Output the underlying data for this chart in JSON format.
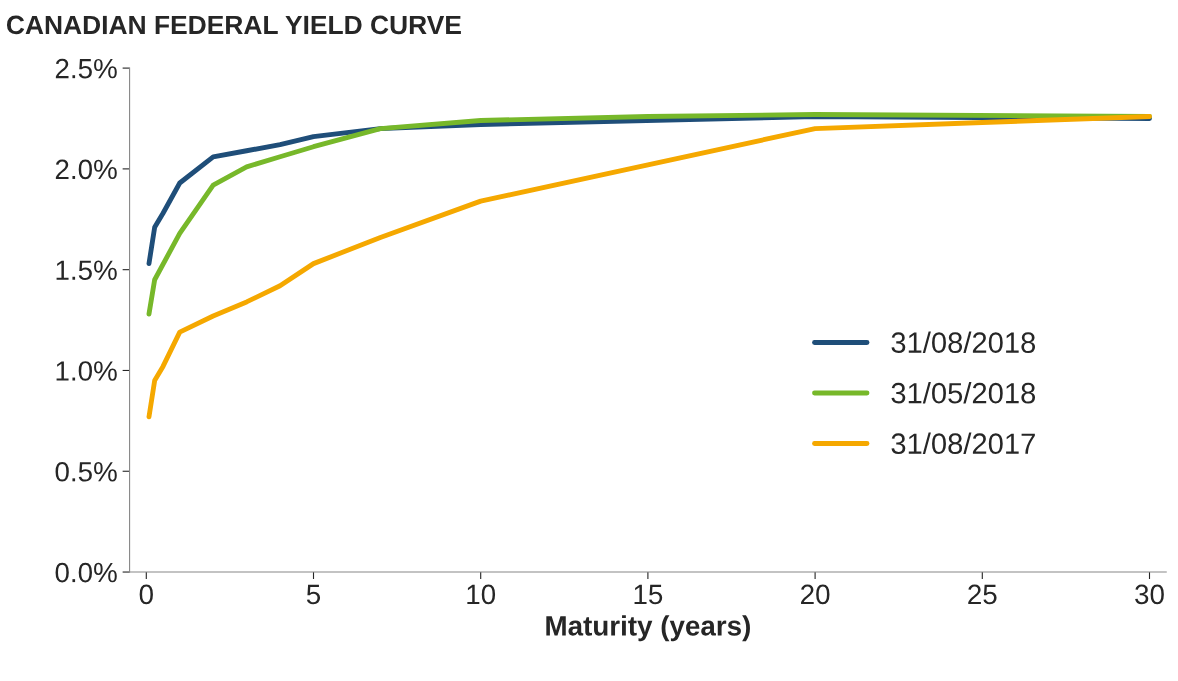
{
  "chart_data": {
    "type": "line",
    "title": "CANADIAN FEDERAL YIELD CURVE",
    "xlabel": "Maturity (years)",
    "series": [
      {
        "name": "31/08/2018",
        "color": "#1f4e79",
        "x": [
          0.08,
          0.25,
          0.5,
          1,
          2,
          3,
          4,
          5,
          7,
          10,
          20,
          30
        ],
        "values": [
          1.53,
          1.71,
          1.78,
          1.93,
          2.06,
          2.09,
          2.12,
          2.16,
          2.2,
          2.22,
          2.26,
          2.25
        ]
      },
      {
        "name": "31/05/2018",
        "color": "#77b82a",
        "x": [
          0.08,
          0.25,
          1,
          2,
          3,
          4,
          5,
          7,
          10,
          15,
          20,
          30
        ],
        "values": [
          1.28,
          1.45,
          1.68,
          1.92,
          2.01,
          2.06,
          2.11,
          2.2,
          2.24,
          2.26,
          2.27,
          2.26
        ]
      },
      {
        "name": "31/08/2017",
        "color": "#f5a800",
        "x": [
          0.08,
          0.25,
          0.5,
          1,
          2,
          3,
          4,
          5,
          7,
          10,
          15,
          20,
          25,
          30
        ],
        "values": [
          0.77,
          0.95,
          1.02,
          1.19,
          1.27,
          1.34,
          1.42,
          1.53,
          1.66,
          1.84,
          2.02,
          2.2,
          2.23,
          2.26
        ]
      }
    ],
    "xlim": [
      -0.5,
      30.5
    ],
    "xticks": [
      0,
      5,
      10,
      15,
      20,
      25,
      30
    ],
    "ylim": [
      0,
      2.5
    ],
    "yticks": [
      {
        "value": 0,
        "label": "0.0%"
      },
      {
        "value": 0.5,
        "label": "0.5%"
      },
      {
        "value": 1,
        "label": "1.0%"
      },
      {
        "value": 1.5,
        "label": "1.5%"
      },
      {
        "value": 2,
        "label": "2.0%"
      },
      {
        "value": 2.5,
        "label": "2.5%"
      }
    ],
    "legend": "right",
    "grid": false,
    "line_style": "solid",
    "marker": "none"
  }
}
